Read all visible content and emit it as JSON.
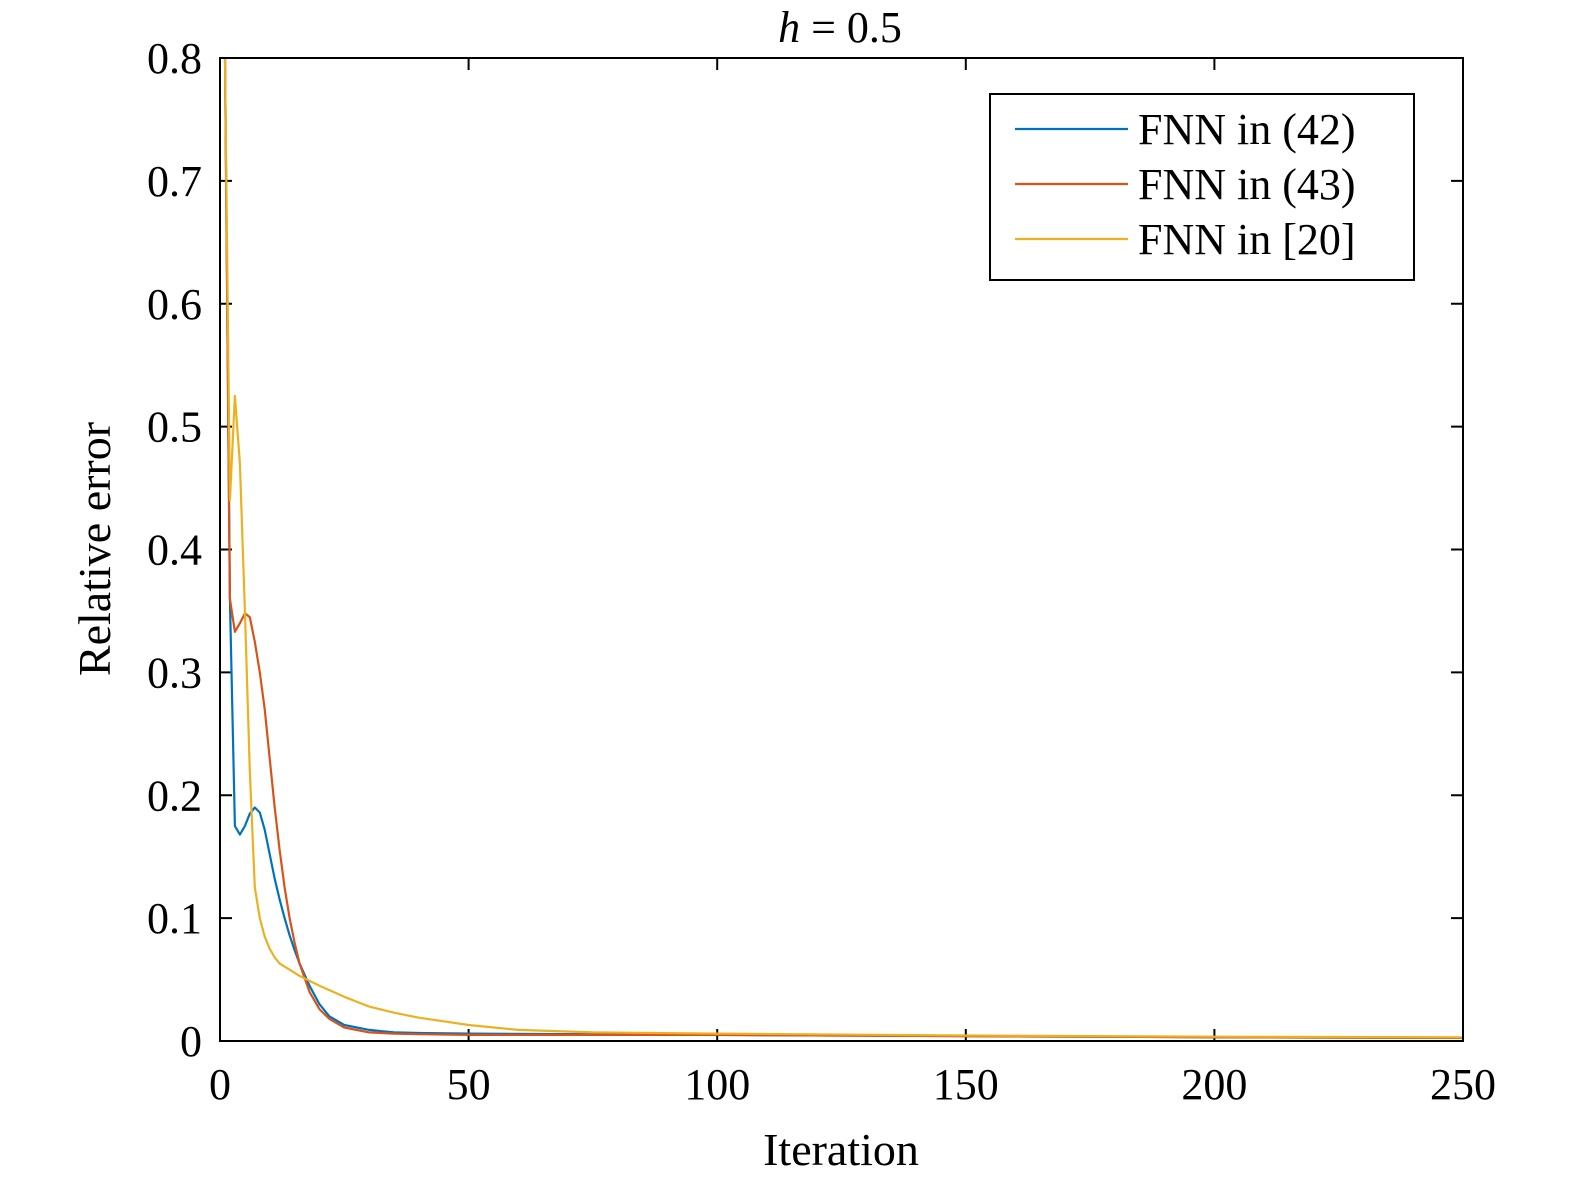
{
  "chart_data": {
    "type": "line",
    "title_prefix": "h",
    "title_suffix": " = 0.5",
    "xlabel": "Iteration",
    "ylabel": "Relative error",
    "xlim": [
      0,
      250
    ],
    "ylim": [
      0,
      0.8
    ],
    "xticks": [
      0,
      50,
      100,
      150,
      200,
      250
    ],
    "yticks": [
      0,
      0.1,
      0.2,
      0.3,
      0.4,
      0.5,
      0.6,
      0.7,
      0.8
    ],
    "xtick_labels": [
      "0",
      "50",
      "100",
      "150",
      "200",
      "250"
    ],
    "ytick_labels": [
      "0",
      "0.1",
      "0.2",
      "0.3",
      "0.4",
      "0.5",
      "0.6",
      "0.7",
      "0.8"
    ],
    "grid": false,
    "legend_position": "top-right",
    "series": [
      {
        "name": "FNN in (42)",
        "color": "#0072BD",
        "points": [
          [
            1,
            0.8
          ],
          [
            2,
            0.36
          ],
          [
            3,
            0.175
          ],
          [
            4,
            0.168
          ],
          [
            5,
            0.175
          ],
          [
            6,
            0.185
          ],
          [
            7,
            0.19
          ],
          [
            8,
            0.186
          ],
          [
            9,
            0.172
          ],
          [
            10,
            0.152
          ],
          [
            11,
            0.132
          ],
          [
            12,
            0.115
          ],
          [
            13,
            0.1
          ],
          [
            14,
            0.086
          ],
          [
            15,
            0.074
          ],
          [
            16,
            0.063
          ],
          [
            18,
            0.045
          ],
          [
            20,
            0.03
          ],
          [
            22,
            0.02
          ],
          [
            25,
            0.013
          ],
          [
            30,
            0.009
          ],
          [
            35,
            0.007
          ],
          [
            40,
            0.0065
          ],
          [
            50,
            0.006
          ],
          [
            75,
            0.0055
          ],
          [
            100,
            0.005
          ],
          [
            150,
            0.004
          ],
          [
            200,
            0.003
          ],
          [
            250,
            0.0025
          ]
        ]
      },
      {
        "name": "FNN in (43)",
        "color": "#D95319",
        "points": [
          [
            1,
            0.8
          ],
          [
            2,
            0.36
          ],
          [
            3,
            0.333
          ],
          [
            4,
            0.34
          ],
          [
            5,
            0.348
          ],
          [
            6,
            0.345
          ],
          [
            7,
            0.325
          ],
          [
            8,
            0.3
          ],
          [
            9,
            0.27
          ],
          [
            10,
            0.23
          ],
          [
            11,
            0.19
          ],
          [
            12,
            0.155
          ],
          [
            13,
            0.125
          ],
          [
            14,
            0.1
          ],
          [
            15,
            0.08
          ],
          [
            16,
            0.063
          ],
          [
            18,
            0.04
          ],
          [
            20,
            0.026
          ],
          [
            22,
            0.018
          ],
          [
            25,
            0.011
          ],
          [
            30,
            0.007
          ],
          [
            35,
            0.006
          ],
          [
            40,
            0.0055
          ],
          [
            50,
            0.005
          ],
          [
            75,
            0.005
          ],
          [
            100,
            0.005
          ],
          [
            150,
            0.004
          ],
          [
            200,
            0.003
          ],
          [
            250,
            0.0025
          ]
        ]
      },
      {
        "name": "FNN in [20]",
        "color": "#EDB120",
        "points": [
          [
            1,
            0.8
          ],
          [
            2,
            0.44
          ],
          [
            3,
            0.525
          ],
          [
            4,
            0.47
          ],
          [
            5,
            0.35
          ],
          [
            6,
            0.22
          ],
          [
            7,
            0.125
          ],
          [
            8,
            0.1
          ],
          [
            9,
            0.085
          ],
          [
            10,
            0.075
          ],
          [
            11,
            0.068
          ],
          [
            12,
            0.063
          ],
          [
            14,
            0.058
          ],
          [
            16,
            0.053
          ],
          [
            18,
            0.049
          ],
          [
            20,
            0.045
          ],
          [
            25,
            0.036
          ],
          [
            30,
            0.028
          ],
          [
            35,
            0.023
          ],
          [
            40,
            0.019
          ],
          [
            45,
            0.016
          ],
          [
            50,
            0.013
          ],
          [
            60,
            0.009
          ],
          [
            75,
            0.007
          ],
          [
            100,
            0.006
          ],
          [
            150,
            0.0045
          ],
          [
            200,
            0.0035
          ],
          [
            250,
            0.003
          ]
        ]
      }
    ]
  }
}
